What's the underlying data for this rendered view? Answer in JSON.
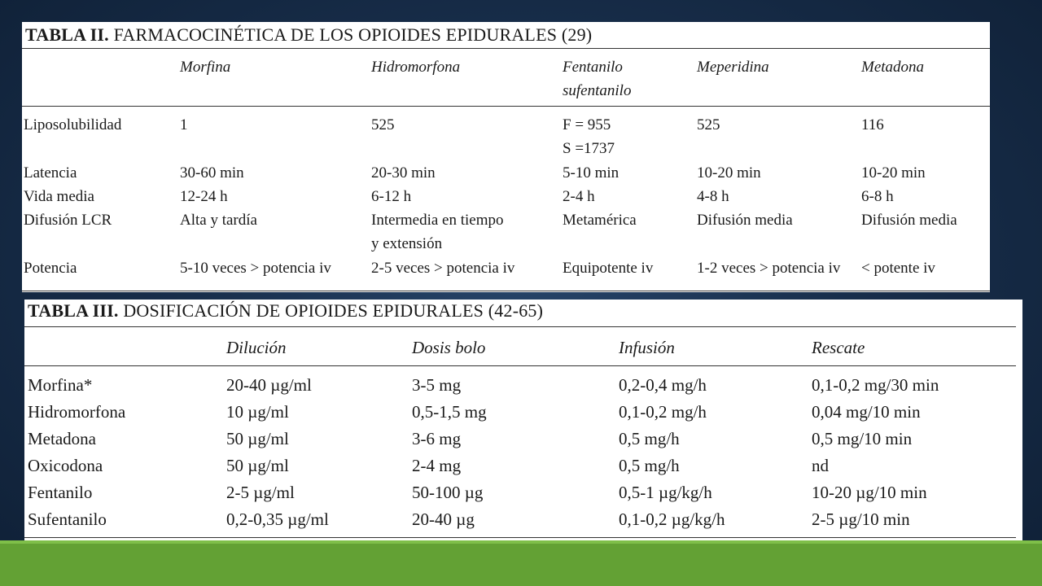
{
  "table2": {
    "title_bold": "TABLA II.",
    "title_rest": " FARMACOCINÉTICA DE LOS OPIOIDES EPIDURALES (29)",
    "columns": [
      {
        "line1": "Morfina",
        "line2": ""
      },
      {
        "line1": "Hidromorfona",
        "line2": ""
      },
      {
        "line1": "Fentanilo",
        "line2": "sufentanilo"
      },
      {
        "line1": "Meperidina",
        "line2": ""
      },
      {
        "line1": "Metadona",
        "line2": ""
      }
    ],
    "rows": [
      {
        "label": "Liposolubilidad",
        "cells": [
          [
            "1"
          ],
          [
            "525"
          ],
          [
            "F = 955",
            "S =1737"
          ],
          [
            "525"
          ],
          [
            "116"
          ]
        ]
      },
      {
        "label": "Latencia",
        "cells": [
          [
            "30-60 min"
          ],
          [
            "20-30 min"
          ],
          [
            "5-10 min"
          ],
          [
            "10-20 min"
          ],
          [
            "10-20 min"
          ]
        ]
      },
      {
        "label": "Vida media",
        "cells": [
          [
            "12-24 h"
          ],
          [
            "6-12 h"
          ],
          [
            "2-4 h"
          ],
          [
            "4-8 h"
          ],
          [
            "6-8 h"
          ]
        ]
      },
      {
        "label": "Difusión LCR",
        "cells": [
          [
            "Alta y tardía"
          ],
          [
            "Intermedia en tiempo",
            "y extensión"
          ],
          [
            "Metamérica"
          ],
          [
            "Difusión media"
          ],
          [
            "Difusión media"
          ]
        ]
      },
      {
        "label": "Potencia",
        "cells": [
          [
            "5-10 veces > potencia iv"
          ],
          [
            "2-5 veces > potencia iv"
          ],
          [
            "Equipotente iv"
          ],
          [
            "1-2 veces > potencia iv"
          ],
          [
            "< potente iv"
          ]
        ]
      }
    ]
  },
  "table3": {
    "title_bold": "TABLA III.",
    "title_rest": " DOSIFICACIÓN DE OPIOIDES EPIDURALES (42-65)",
    "columns": [
      "Dilución",
      "Dosis bolo",
      "Infusión",
      "Rescate"
    ],
    "rows": [
      {
        "label": "Morfina*",
        "cells": [
          "20-40 µg/ml",
          "3-5 mg",
          "0,2-0,4 mg/h",
          "0,1-0,2 mg/30 min"
        ]
      },
      {
        "label": "Hidromorfona",
        "cells": [
          "10 µg/ml",
          "0,5-1,5 mg",
          "0,1-0,2 mg/h",
          "0,04 mg/10 min"
        ]
      },
      {
        "label": "Metadona",
        "cells": [
          "50 µg/ml",
          "3-6 mg",
          "0,5 mg/h",
          "0,5 mg/10 min"
        ]
      },
      {
        "label": "Oxicodona",
        "cells": [
          "50 µg/ml",
          "2-4 mg",
          "0,5 mg/h",
          "nd"
        ]
      },
      {
        "label": "Fentanilo",
        "cells": [
          "2-5 µg/ml",
          "50-100 µg",
          "0,5-1 µg/kg/h",
          "10-20 µg/10 min"
        ]
      },
      {
        "label": "Sufentanilo",
        "cells": [
          "0,2-0,35 µg/ml",
          "20-40 µg",
          "0,1-0,2 µg/kg/h",
          "2-5 µg/10 min"
        ]
      }
    ]
  },
  "colors": {
    "background": "#182e4b",
    "panel": "#ffffff",
    "text": "#1a1a1a",
    "green_bar": "#63a134"
  }
}
